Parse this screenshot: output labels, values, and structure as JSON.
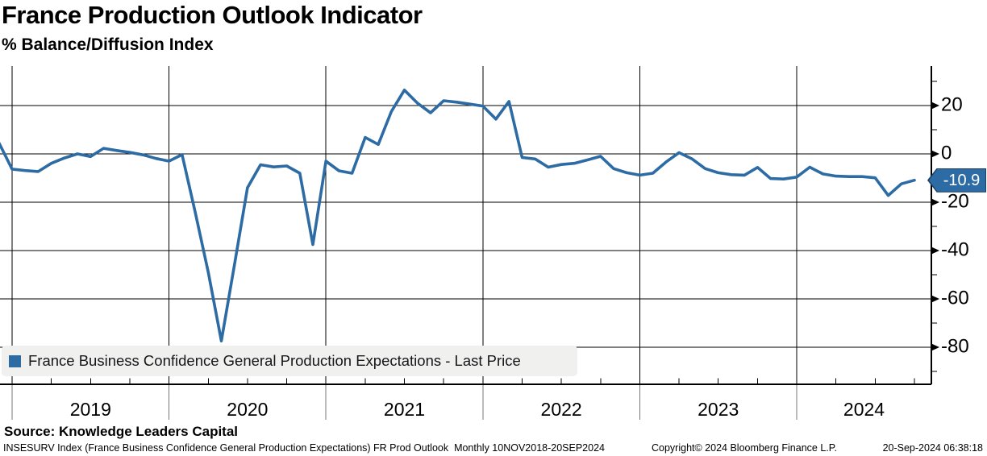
{
  "header": {
    "title": "France Production Outlook Indicator",
    "subtitle": "% Balance/Diffusion Index"
  },
  "chart_data": {
    "type": "line",
    "title": "France Production Outlook Indicator",
    "ylabel": "% Balance/Diffusion Index",
    "frequency": "Monthly",
    "date_range": "10NOV2018-20SEP2024",
    "ylim": [
      -95,
      35
    ],
    "y_ticks_major": [
      20,
      0,
      -20,
      -40,
      -60,
      -80
    ],
    "y_ticks_minor": [
      30,
      10,
      -10,
      -30,
      -50,
      -70,
      -90
    ],
    "x_year_labels": [
      "2019",
      "2020",
      "2021",
      "2022",
      "2023",
      "2024"
    ],
    "grid": true,
    "legend_position": "bottom-left",
    "last_value": -10.9,
    "series": [
      {
        "name": "France Business Confidence General Production Expectations - Last Price",
        "color": "#2d6ba5",
        "months": [
          "Nov 2018",
          "Dec 2018",
          "Jan 2019",
          "Feb 2019",
          "Mar 2019",
          "Apr 2019",
          "May 2019",
          "Jun 2019",
          "Jul 2019",
          "Aug 2019",
          "Sep 2019",
          "Oct 2019",
          "Nov 2019",
          "Dec 2019",
          "Jan 2020",
          "Feb 2020",
          "Mar 2020",
          "Apr 2020",
          "May 2020",
          "Jun 2020",
          "Jul 2020",
          "Aug 2020",
          "Sep 2020",
          "Oct 2020",
          "Nov 2020",
          "Dec 2020",
          "Jan 2021",
          "Feb 2021",
          "Mar 2021",
          "Apr 2021",
          "May 2021",
          "Jun 2021",
          "Jul 2021",
          "Aug 2021",
          "Sep 2021",
          "Oct 2021",
          "Nov 2021",
          "Dec 2021",
          "Jan 2022",
          "Feb 2022",
          "Mar 2022",
          "Apr 2022",
          "May 2022",
          "Jun 2022",
          "Jul 2022",
          "Aug 2022",
          "Sep 2022",
          "Oct 2022",
          "Nov 2022",
          "Dec 2022",
          "Jan 2023",
          "Feb 2023",
          "Mar 2023",
          "Apr 2023",
          "May 2023",
          "Jun 2023",
          "Jul 2023",
          "Aug 2023",
          "Sep 2023",
          "Oct 2023",
          "Nov 2023",
          "Dec 2023",
          "Jan 2024",
          "Feb 2024",
          "Mar 2024",
          "Apr 2024",
          "May 2024",
          "Jun 2024",
          "Jul 2024",
          "Aug 2024",
          "Sep 2024"
        ],
        "values": [
          4.5,
          -6.3,
          -6.9,
          -7.3,
          -3.9,
          -1.7,
          0,
          -1.1,
          2.3,
          1.4,
          0.6,
          -0.4,
          -1.9,
          -3,
          -0.3,
          -24,
          -49,
          -77.4,
          -46,
          -14,
          -4.5,
          -5.4,
          -5,
          -8,
          -37.5,
          -3,
          -7,
          -8,
          6.8,
          3.9,
          17.5,
          26.4,
          21,
          17,
          22,
          21.4,
          20.6,
          19.8,
          14.4,
          21.7,
          -1.5,
          -2.1,
          -5.5,
          -4.4,
          -3.9,
          -2.5,
          -1,
          -6.1,
          -7.8,
          -8.8,
          -8,
          -3.4,
          0.5,
          -2.1,
          -6.1,
          -7.8,
          -8.6,
          -8.8,
          -5.6,
          -10.2,
          -10.4,
          -9.6,
          -5.5,
          -8.3,
          -9.2,
          -9.4,
          -9.4,
          -9.9,
          -17.2,
          -12.4,
          -10.9
        ]
      }
    ]
  },
  "legend": {
    "swatch_color": "#2d6ba5",
    "label": "France Business Confidence General Production Expectations - Last Price"
  },
  "badge": {
    "value": "-10.9",
    "fill": "#2d6ba5",
    "border": "#1b3f66",
    "text_color": "#ffffff"
  },
  "source": {
    "text": "Source: Knowledge Leaders Capital"
  },
  "footer": {
    "left": "INSESURV Index (France Business Confidence General Production Expectations) FR Prod Outlook  Monthly 10NOV2018-20SEP2024",
    "center": "Copyright© 2024 Bloomberg Finance L.P.",
    "right": "20-Sep-2024 06:38:18"
  },
  "colors": {
    "line": "#2d6ba5",
    "grid": "#000000",
    "axis": "#000000",
    "legend_bg": "#f0f0ee",
    "background": "#ffffff"
  }
}
